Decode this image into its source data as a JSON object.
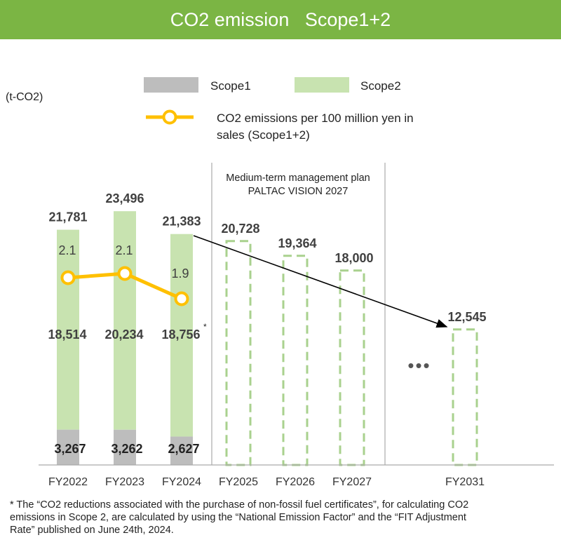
{
  "banner": {
    "title": "CO2 emission   Scope1+2"
  },
  "colors": {
    "scope1": "#bdbdbd",
    "scope2": "#c8e3b0",
    "plan_dash": "#a9d18e",
    "line": "#ffc000",
    "banner": "#7bb544",
    "divider": "#aaaaaa",
    "text": "#404040"
  },
  "chart_data": {
    "type": "bar",
    "title": "CO2 emission Scope1+2",
    "unit_label": "(t-CO2)",
    "categories": [
      "FY2022",
      "FY2023",
      "FY2024",
      "FY2025",
      "FY2026",
      "FY2027",
      "FY2031"
    ],
    "series": [
      {
        "name": "Scope1",
        "values": [
          3267,
          3262,
          2627,
          null,
          null,
          null,
          null
        ],
        "labels": [
          "3,267",
          "3,262",
          "2,627"
        ]
      },
      {
        "name": "Scope2",
        "values": [
          18514,
          20234,
          18756,
          null,
          null,
          null,
          null
        ],
        "labels": [
          "18,514",
          "20,234",
          "18,756"
        ],
        "fy2024_footnote_mark": "*"
      }
    ],
    "totals": [
      21781,
      23496,
      21383
    ],
    "total_labels": [
      "21,781",
      "23,496",
      "21,383"
    ],
    "targets": [
      20728,
      19364,
      18000,
      12545
    ],
    "target_categories": [
      "FY2025",
      "FY2026",
      "FY2027",
      "FY2031"
    ],
    "target_labels": [
      "20,728",
      "19,364",
      "18,000",
      "12,545"
    ],
    "intensity": {
      "name": "CO2 emissions per 100 million yen in sales (Scope1+2)",
      "legend_line1": "CO2 emissions per 100 million yen in",
      "legend_line2": "sales (Scope1+2)",
      "values": [
        2.1,
        2.1,
        1.9
      ],
      "labels": [
        "2.1",
        "2.1",
        "1.9"
      ]
    },
    "plan_label_line1": "Medium-term management plan",
    "plan_label_line2": "PALTAC VISION 2027",
    "ellipsis": "•••",
    "ylim": [
      0,
      26000
    ]
  },
  "footnote": {
    "line1": "* The “CO2 reductions associated with the purchase of non-fossil fuel certificates”, for calculating CO2",
    "line2": "emissions in Scope 2, are calculated by using the “National Emission Factor” and the “FIT Adjustment",
    "line3": "Rate” published on June 24th, 2024."
  }
}
